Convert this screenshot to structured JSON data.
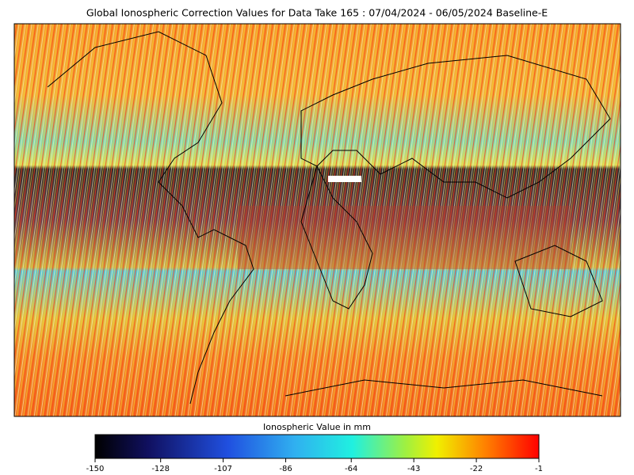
{
  "title": "Global Ionospheric Correction Values for Data Take 165 : 07/04/2024 - 06/05/2024 Baseline-E",
  "colorbar": {
    "label": "Ionospheric Value in mm",
    "lim": [
      -150,
      -1
    ],
    "ticks": [
      -150,
      -128,
      -107,
      -86,
      -64,
      -43,
      -22,
      -1
    ]
  }
}
